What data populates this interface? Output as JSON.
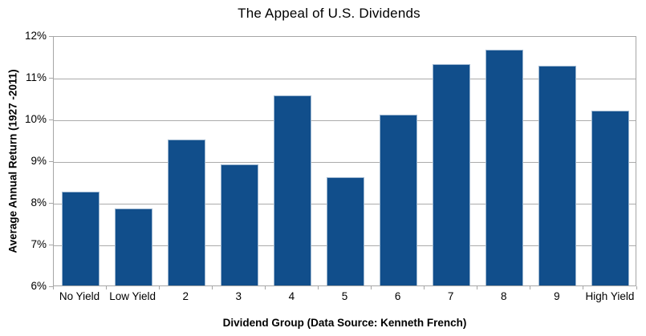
{
  "chart_data": {
    "type": "bar",
    "title": "The Appeal of U.S. Dividends",
    "xlabel": "Dividend Group (Data Source: Kenneth French)",
    "ylabel": "Average Annual Return (1927 -2011)",
    "categories": [
      "No Yield",
      "Low Yield",
      "2",
      "3",
      "4",
      "5",
      "6",
      "7",
      "8",
      "9",
      "High Yield"
    ],
    "values": [
      8.25,
      7.85,
      9.5,
      8.9,
      10.55,
      8.6,
      10.1,
      11.3,
      11.65,
      11.27,
      10.2
    ],
    "ylim": [
      6,
      12
    ],
    "ytick_step": 1,
    "ytick_suffix": "%",
    "grid": "horizontal",
    "legend": "none",
    "colors": {
      "bar_fill": "#114E8B",
      "bar_border": "#9CB6D0",
      "gridline": "#ABABAB",
      "axis": "#A6A6A6",
      "text": "#000000",
      "background": "#FFFFFF"
    }
  }
}
